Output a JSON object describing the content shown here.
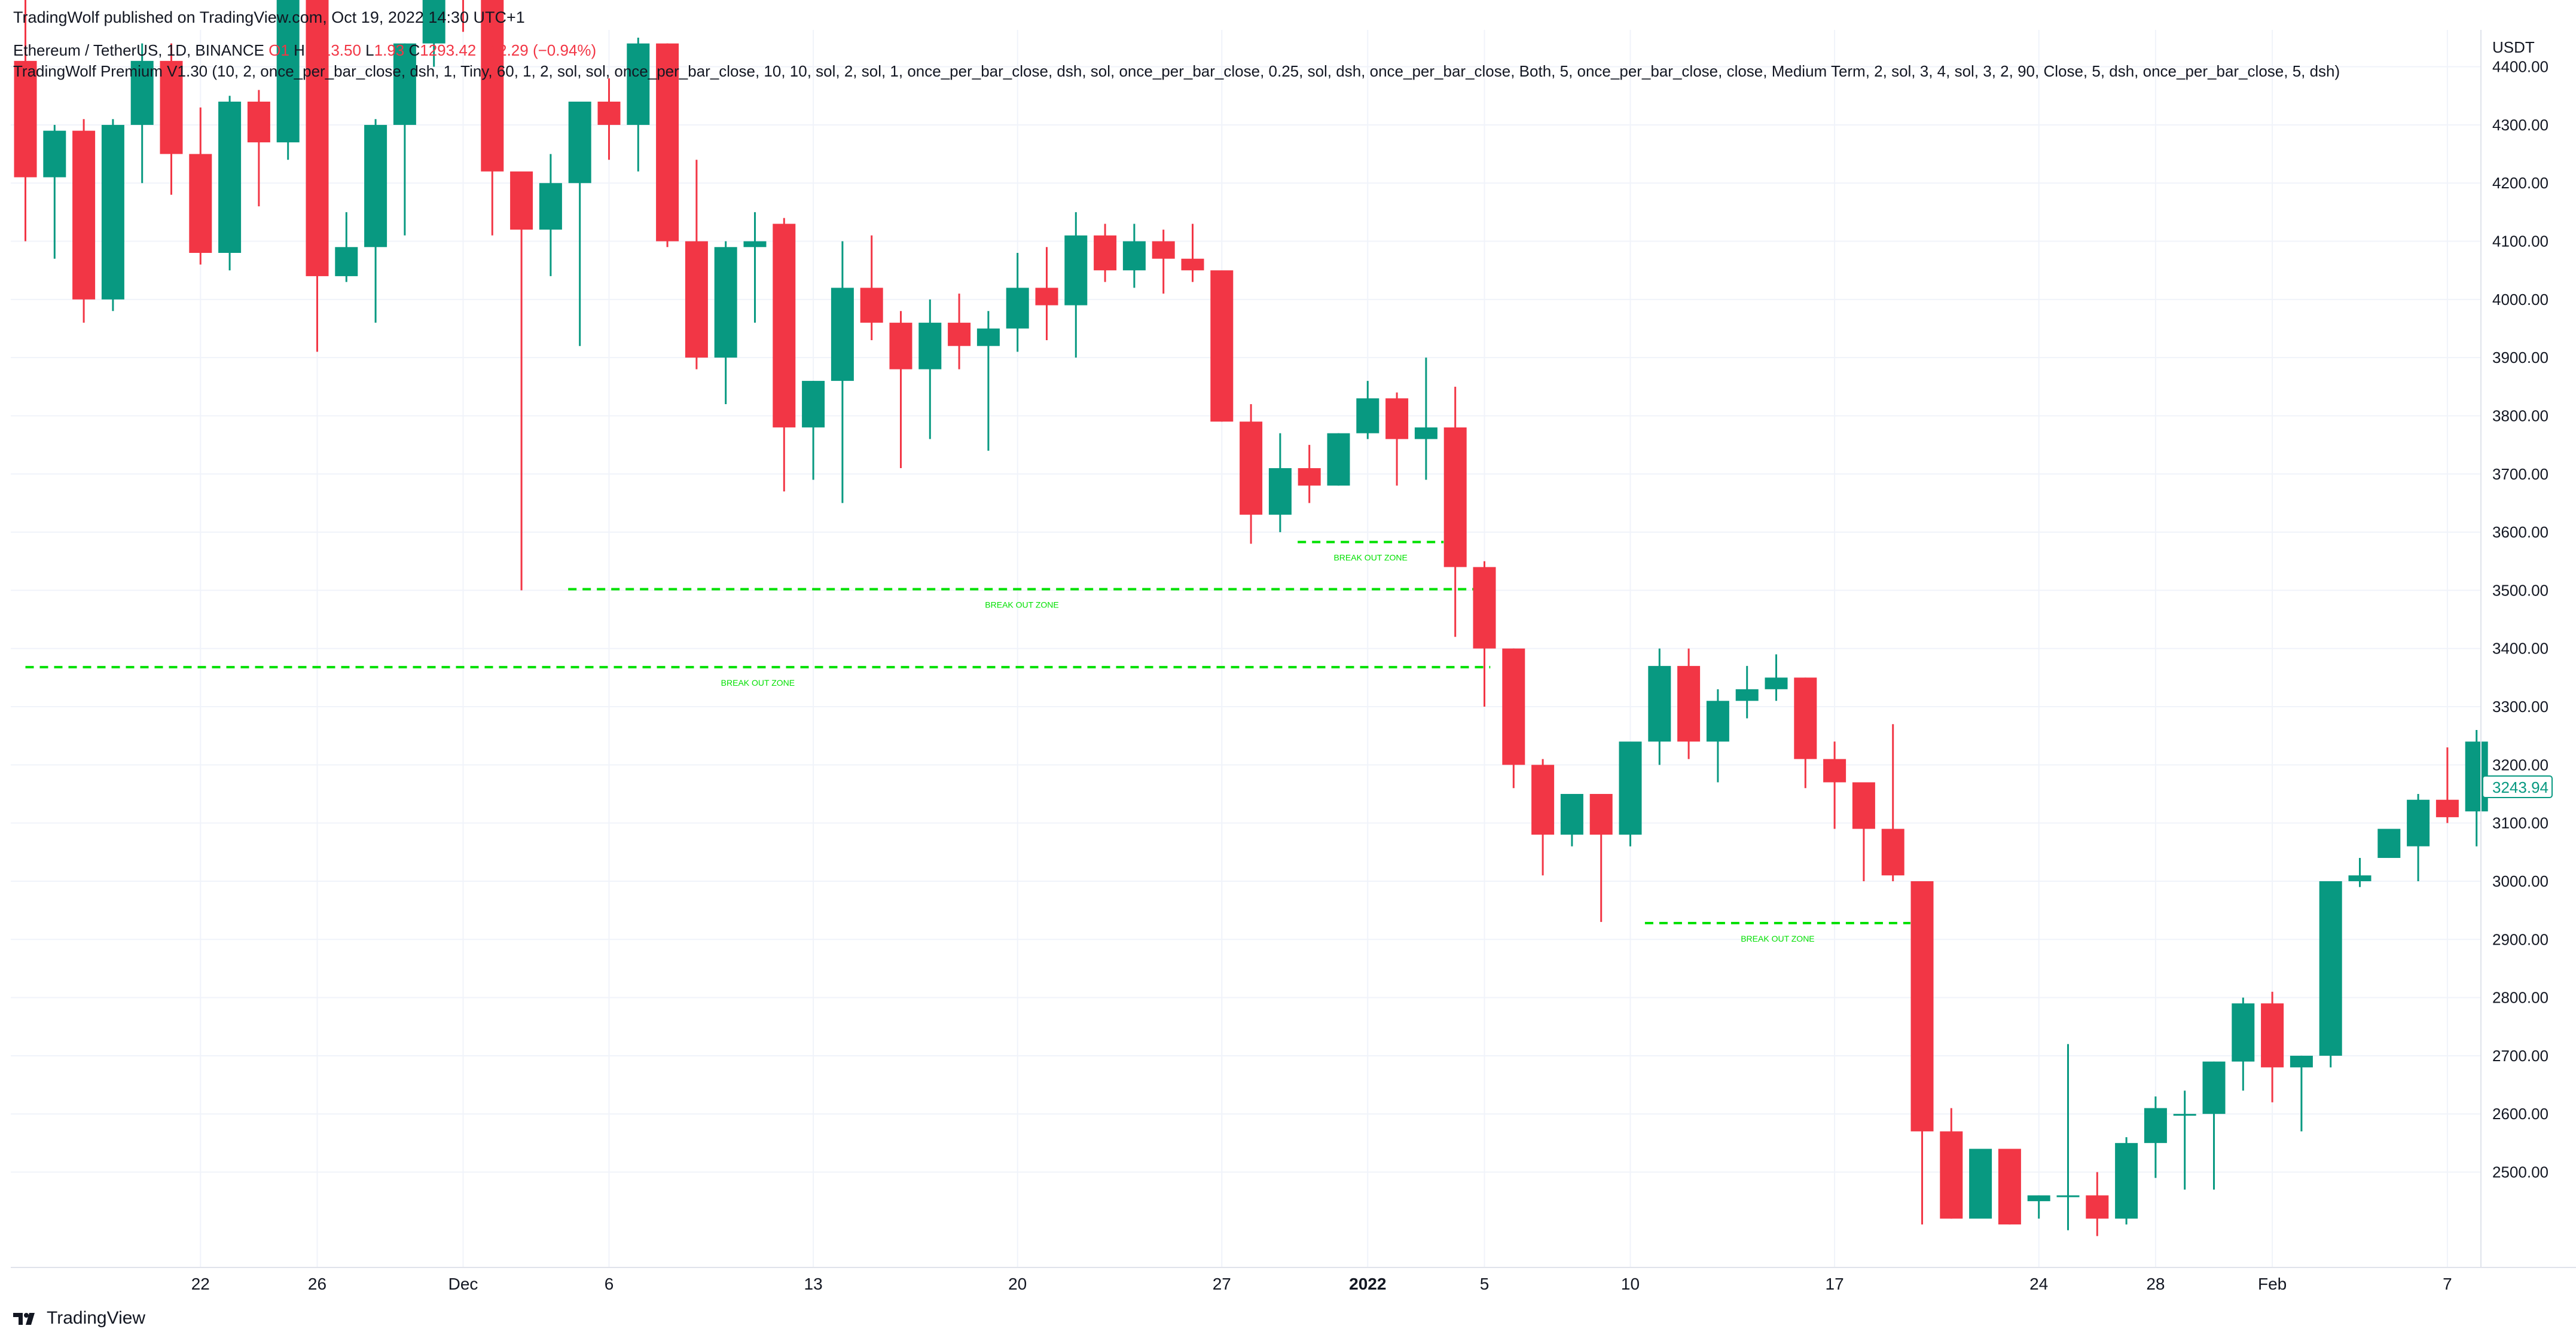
{
  "header": {
    "published": "TradingWolf published on TradingView.com, Oct 19, 2022 14:30 UTC+1",
    "symbol": "Ethereum / TetherUS, 1D, BINANCE",
    "ohlc_open": "O1",
    "ohlc_high_label": "H",
    "ohlc_high": "1313.50",
    "ohlc_low_label": "L",
    "ohlc_low": "1.93",
    "ohlc_close_label": "C",
    "ohlc_close": "1293.42",
    "ohlc_change": "−12.29 (−0.94%)",
    "indicator": "TradingWolf Premium V1.30 (10, 2, once_per_bar_close, dsh, 1, Tiny, 60, 1, 2, sol, sol, once_per_bar_close, 10, 10, sol, 2, sol, 1, once_per_bar_close, dsh, sol, once_per_bar_close, 0.25, sol, dsh, once_per_bar_close, Both, 5, once_per_bar_close, close, Medium Term, 2, sol, 3, 4, sol, 3, 2, 90, Close, 5, dsh, once_per_bar_close, 5, dsh)"
  },
  "footer": {
    "brand": "TradingView"
  },
  "colors": {
    "up": "#089981",
    "down": "#f23645",
    "zone": "#00e000",
    "grid": "#f0f3fa",
    "axis_text": "#131722",
    "price_tag": "#089981"
  },
  "chart_data": {
    "type": "candlestick",
    "currency": "USDT",
    "last_price_label": "3243.94",
    "ylim": [
      2420,
      4550
    ],
    "y_ticks": [
      "4400.00",
      "4300.00",
      "4200.00",
      "4100.00",
      "4000.00",
      "3900.00",
      "3800.00",
      "3700.00",
      "3600.00",
      "3500.00",
      "3400.00",
      "3300.00",
      "3200.00",
      "3100.00",
      "3000.00",
      "2900.00",
      "2800.00",
      "2700.00",
      "2600.00",
      "2500.00"
    ],
    "x_ticks": [
      {
        "label": "22",
        "i": 6,
        "bold": false
      },
      {
        "label": "26",
        "i": 10,
        "bold": false
      },
      {
        "label": "Dec",
        "i": 15,
        "bold": false
      },
      {
        "label": "6",
        "i": 20,
        "bold": false
      },
      {
        "label": "13",
        "i": 27,
        "bold": false
      },
      {
        "label": "20",
        "i": 34,
        "bold": false
      },
      {
        "label": "27",
        "i": 41,
        "bold": false
      },
      {
        "label": "2022",
        "i": 46,
        "bold": true
      },
      {
        "label": "5",
        "i": 50,
        "bold": false
      },
      {
        "label": "10",
        "i": 55,
        "bold": false
      },
      {
        "label": "17",
        "i": 62,
        "bold": false
      },
      {
        "label": "24",
        "i": 69,
        "bold": false
      },
      {
        "label": "28",
        "i": 73,
        "bold": false
      },
      {
        "label": "Feb",
        "i": 77,
        "bold": false
      },
      {
        "label": "7",
        "i": 83,
        "bold": false
      }
    ],
    "ohlc": [
      [
        4410,
        4550,
        4100,
        4210
      ],
      [
        4210,
        4300,
        4070,
        4290
      ],
      [
        4290,
        4310,
        3960,
        4000
      ],
      [
        4000,
        4310,
        3980,
        4300
      ],
      [
        4300,
        4440,
        4200,
        4410
      ],
      [
        4410,
        4440,
        4180,
        4250
      ],
      [
        4250,
        4330,
        4060,
        4080
      ],
      [
        4080,
        4350,
        4050,
        4340
      ],
      [
        4340,
        4360,
        4160,
        4270
      ],
      [
        4270,
        4550,
        4240,
        4550
      ],
      [
        4550,
        4550,
        3910,
        4040
      ],
      [
        4040,
        4150,
        4030,
        4090
      ],
      [
        4090,
        4310,
        3960,
        4300
      ],
      [
        4300,
        4440,
        4110,
        4440
      ],
      [
        4440,
        4550,
        4400,
        4550
      ],
      [
        4550,
        4550,
        4460,
        4520
      ],
      [
        4520,
        4540,
        4110,
        4220
      ],
      [
        4220,
        4210,
        3500,
        4120
      ],
      [
        4120,
        4250,
        4040,
        4200
      ],
      [
        4200,
        4340,
        3920,
        4340
      ],
      [
        4340,
        4380,
        4240,
        4300
      ],
      [
        4300,
        4450,
        4220,
        4440
      ],
      [
        4440,
        4440,
        4090,
        4100
      ],
      [
        4100,
        4240,
        3880,
        3900
      ],
      [
        3900,
        4100,
        3820,
        4090
      ],
      [
        4090,
        4150,
        3960,
        4100
      ],
      [
        4130,
        4140,
        3670,
        3780
      ],
      [
        3780,
        3860,
        3690,
        3860
      ],
      [
        3860,
        4100,
        3650,
        4020
      ],
      [
        4020,
        4110,
        3930,
        3960
      ],
      [
        3960,
        3980,
        3710,
        3880
      ],
      [
        3880,
        4000,
        3760,
        3960
      ],
      [
        3960,
        4010,
        3880,
        3920
      ],
      [
        3920,
        3980,
        3740,
        3950
      ],
      [
        3950,
        4080,
        3910,
        4020
      ],
      [
        4020,
        4090,
        3930,
        3990
      ],
      [
        3990,
        4150,
        3900,
        4110
      ],
      [
        4110,
        4130,
        4030,
        4050
      ],
      [
        4050,
        4130,
        4020,
        4100
      ],
      [
        4100,
        4120,
        4010,
        4070
      ],
      [
        4070,
        4130,
        4030,
        4050
      ],
      [
        4050,
        4040,
        3790,
        3790
      ],
      [
        3790,
        3820,
        3580,
        3630
      ],
      [
        3630,
        3770,
        3600,
        3710
      ],
      [
        3710,
        3750,
        3650,
        3680
      ],
      [
        3680,
        3770,
        3680,
        3770
      ],
      [
        3770,
        3860,
        3760,
        3830
      ],
      [
        3830,
        3840,
        3680,
        3760
      ],
      [
        3760,
        3900,
        3690,
        3780
      ],
      [
        3780,
        3850,
        3420,
        3540
      ],
      [
        3540,
        3550,
        3300,
        3400
      ],
      [
        3400,
        3400,
        3160,
        3200
      ],
      [
        3200,
        3210,
        3010,
        3080
      ],
      [
        3080,
        3140,
        3060,
        3150
      ],
      [
        3150,
        3150,
        2930,
        3080
      ],
      [
        3080,
        3230,
        3060,
        3240
      ],
      [
        3240,
        3400,
        3200,
        3370
      ],
      [
        3370,
        3400,
        3210,
        3240
      ],
      [
        3240,
        3330,
        3170,
        3310
      ],
      [
        3310,
        3370,
        3280,
        3330
      ],
      [
        3330,
        3390,
        3310,
        3350
      ],
      [
        3350,
        3350,
        3160,
        3210
      ],
      [
        3210,
        3240,
        3090,
        3170
      ],
      [
        3170,
        3160,
        3000,
        3090
      ],
      [
        3090,
        3270,
        3000,
        3010
      ],
      [
        3000,
        2980,
        2410,
        2570
      ],
      [
        2570,
        2610,
        2420,
        2420
      ],
      [
        2420,
        2530,
        2440,
        2540
      ],
      [
        2540,
        2530,
        2410,
        2410
      ],
      [
        2450,
        2460,
        2420,
        2460
      ],
      [
        2460,
        2720,
        2400,
        2460
      ],
      [
        2460,
        2500,
        2390,
        2420
      ],
      [
        2420,
        2560,
        2410,
        2550
      ],
      [
        2550,
        2630,
        2490,
        2610
      ],
      [
        2600,
        2640,
        2470,
        2600
      ],
      [
        2600,
        2690,
        2470,
        2690
      ],
      [
        2690,
        2800,
        2640,
        2790
      ],
      [
        2790,
        2810,
        2620,
        2680
      ],
      [
        2680,
        2700,
        2570,
        2700
      ],
      [
        2700,
        3000,
        2680,
        3000
      ],
      [
        3000,
        3040,
        2990,
        3010
      ],
      [
        3040,
        3070,
        3040,
        3090
      ],
      [
        3060,
        3150,
        3000,
        3140
      ],
      [
        3140,
        3230,
        3100,
        3110
      ],
      [
        3120,
        3260,
        3060,
        3240
      ]
    ],
    "zones": [
      {
        "label": "BREAK OUT ZONE",
        "price": 3368,
        "from": 0,
        "to": 50.2
      },
      {
        "label": "BREAK OUT ZONE",
        "price": 3502,
        "from": 18.6,
        "to": 49.7
      },
      {
        "label": "BREAK OUT ZONE",
        "price": 3583,
        "from": 43.6,
        "to": 48.6
      },
      {
        "label": "BREAK OUT ZONE",
        "price": 2928,
        "from": 55.5,
        "to": 64.6
      }
    ]
  }
}
